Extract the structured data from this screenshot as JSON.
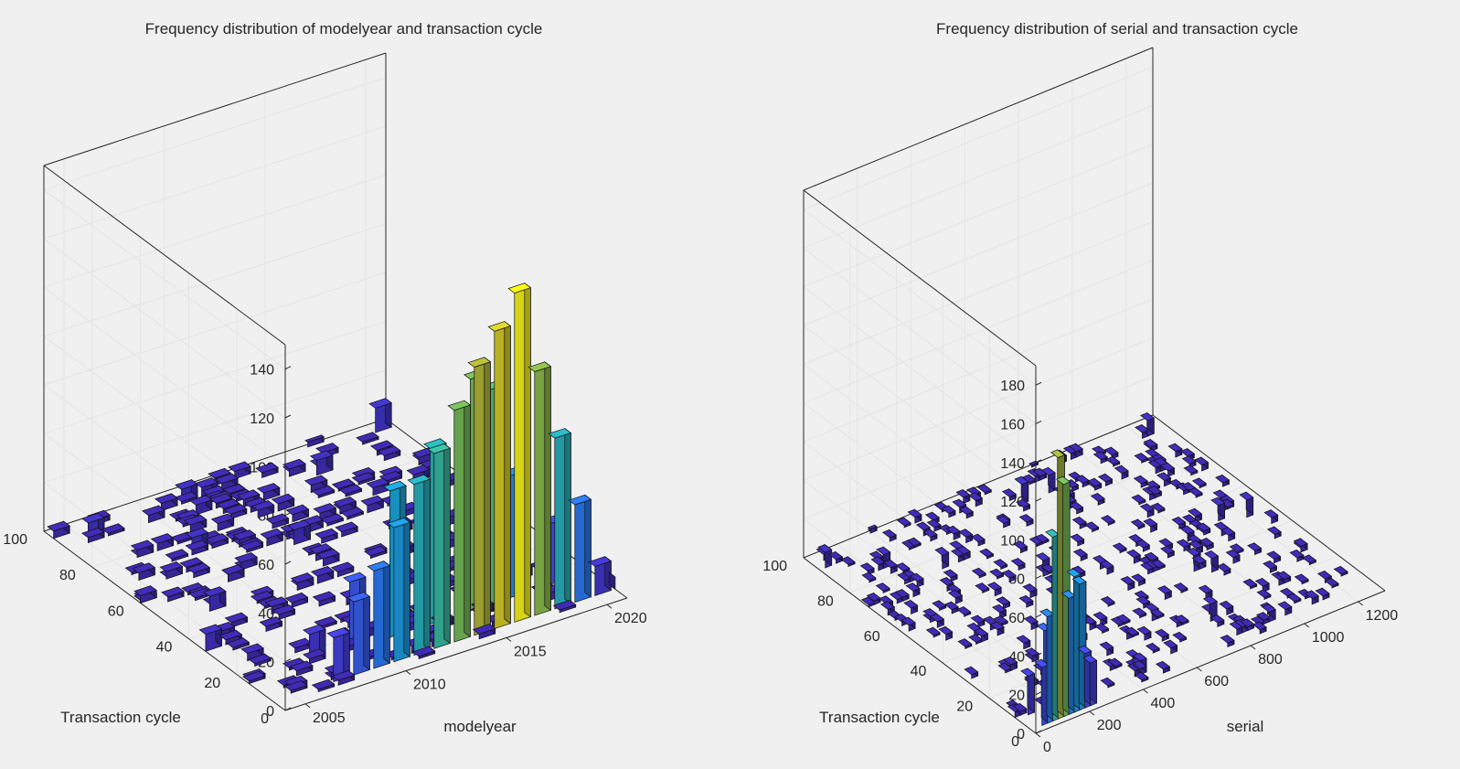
{
  "figure": {
    "background": "#f0f0f0",
    "axis_color": "#262626",
    "grid_color": "#e3e3e3"
  },
  "chart_data": [
    {
      "type": "bar3d",
      "title": "Frequency distribution of modelyear and transaction cycle",
      "xlabel": "modelyear",
      "ylabel": "Transaction cycle",
      "zlabel": "",
      "xlim": [
        2004,
        2021
      ],
      "ylim": [
        0,
        100
      ],
      "zlim": [
        0,
        150
      ],
      "xticks": [
        2005,
        2010,
        2015,
        2020
      ],
      "yticks": [
        0,
        20,
        40,
        60,
        80,
        100
      ],
      "zticks": [
        0,
        20,
        40,
        60,
        80,
        100,
        120,
        140
      ],
      "grid": true,
      "colormap": "parula",
      "tallest_bars": [
        {
          "modelyear": 2007,
          "cycle": 5,
          "count": 18
        },
        {
          "modelyear": 2008,
          "cycle": 5,
          "count": 30
        },
        {
          "modelyear": 2009,
          "cycle": 5,
          "count": 40
        },
        {
          "modelyear": 2010,
          "cycle": 5,
          "count": 55
        },
        {
          "modelyear": 2011,
          "cycle": 5,
          "count": 70
        },
        {
          "modelyear": 2012,
          "cycle": 5,
          "count": 80
        },
        {
          "modelyear": 2013,
          "cycle": 5,
          "count": 95
        },
        {
          "modelyear": 2014,
          "cycle": 5,
          "count": 110
        },
        {
          "modelyear": 2015,
          "cycle": 5,
          "count": 122
        },
        {
          "modelyear": 2016,
          "cycle": 5,
          "count": 135
        },
        {
          "modelyear": 2017,
          "cycle": 5,
          "count": 100
        },
        {
          "modelyear": 2018,
          "cycle": 5,
          "count": 70
        },
        {
          "modelyear": 2019,
          "cycle": 5,
          "count": 40
        },
        {
          "modelyear": 2020,
          "cycle": 5,
          "count": 12
        },
        {
          "modelyear": 2021,
          "cycle": 5,
          "count": 5
        },
        {
          "modelyear": 2007,
          "cycle": 15,
          "count": 12
        },
        {
          "modelyear": 2009,
          "cycle": 15,
          "count": 28
        },
        {
          "modelyear": 2011,
          "cycle": 15,
          "count": 60
        },
        {
          "modelyear": 2013,
          "cycle": 15,
          "count": 72
        },
        {
          "modelyear": 2015,
          "cycle": 15,
          "count": 95
        },
        {
          "modelyear": 2016,
          "cycle": 15,
          "count": 88
        },
        {
          "modelyear": 2017,
          "cycle": 15,
          "count": 50
        },
        {
          "modelyear": 2019,
          "cycle": 15,
          "count": 25
        }
      ]
    },
    {
      "type": "bar3d",
      "title": "Frequency distribution of serial and transaction cycle",
      "xlabel": "serial",
      "ylabel": "Transaction cycle",
      "zlabel": "",
      "xlim": [
        0,
        1300
      ],
      "ylim": [
        0,
        100
      ],
      "zlim": [
        0,
        190
      ],
      "xticks": [
        0,
        200,
        400,
        600,
        800,
        1000,
        1200
      ],
      "yticks": [
        0,
        20,
        40,
        60,
        80,
        100
      ],
      "zticks": [
        0,
        20,
        40,
        60,
        80,
        100,
        120,
        140,
        160,
        180
      ],
      "grid": true,
      "colormap": "parula",
      "tallest_bars": [
        {
          "serial": 40,
          "cycle": 2,
          "count": 30
        },
        {
          "serial": 60,
          "cycle": 2,
          "count": 55
        },
        {
          "serial": 80,
          "cycle": 2,
          "count": 95
        },
        {
          "serial": 100,
          "cycle": 2,
          "count": 135
        },
        {
          "serial": 120,
          "cycle": 2,
          "count": 120
        },
        {
          "serial": 140,
          "cycle": 2,
          "count": 60
        },
        {
          "serial": 160,
          "cycle": 2,
          "count": 70
        },
        {
          "serial": 180,
          "cycle": 2,
          "count": 65
        },
        {
          "serial": 200,
          "cycle": 2,
          "count": 28
        },
        {
          "serial": 220,
          "cycle": 2,
          "count": 22
        },
        {
          "serial": 40,
          "cycle": 8,
          "count": 20
        },
        {
          "serial": 100,
          "cycle": 8,
          "count": 40
        },
        {
          "serial": 160,
          "cycle": 8,
          "count": 38
        },
        {
          "serial": 200,
          "cycle": 8,
          "count": 15
        }
      ]
    }
  ]
}
